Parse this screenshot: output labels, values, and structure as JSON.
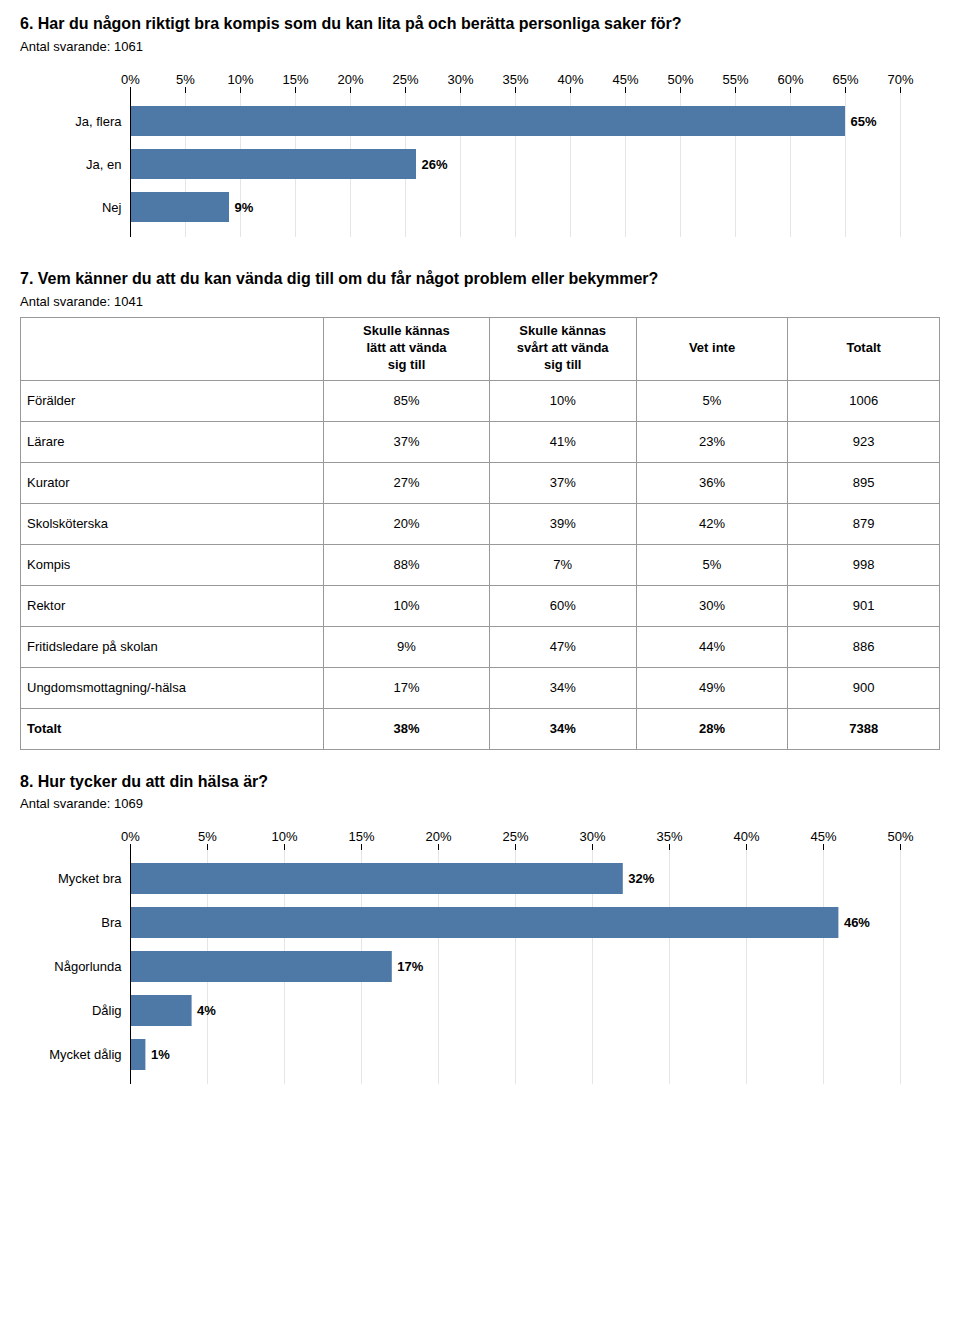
{
  "chart_data": [
    {
      "type": "bar",
      "title": "6. Har du någon riktigt bra kompis som du kan lita på och berätta personliga saker för?",
      "subtitle": "Antal svarande: 1061",
      "orientation": "horizontal",
      "categories": [
        "Ja, flera",
        "Ja, en",
        "Nej"
      ],
      "values": [
        65,
        26,
        9
      ],
      "value_labels": [
        "65%",
        "26%",
        "9%"
      ],
      "data_labels": true,
      "xlim": [
        0,
        70
      ],
      "xticks": [
        {
          "value": 0,
          "label": "0%"
        },
        {
          "value": 5,
          "label": "5%"
        },
        {
          "value": 10,
          "label": "10%"
        },
        {
          "value": 15,
          "label": "15%"
        },
        {
          "value": 20,
          "label": "20%"
        },
        {
          "value": 25,
          "label": "25%"
        },
        {
          "value": 30,
          "label": "30%"
        },
        {
          "value": 35,
          "label": "35%"
        },
        {
          "value": 40,
          "label": "40%"
        },
        {
          "value": 45,
          "label": "45%"
        },
        {
          "value": 50,
          "label": "50%"
        },
        {
          "value": 55,
          "label": "55%"
        },
        {
          "value": 60,
          "label": "60%"
        },
        {
          "value": 65,
          "label": "65%"
        },
        {
          "value": 70,
          "label": "70%"
        }
      ],
      "grid": true
    },
    {
      "type": "table",
      "title": "7. Vem känner du att du kan vända dig till om du får något problem eller bekymmer?",
      "subtitle": "Antal svarande: 1041",
      "categories": [
        "Förälder",
        "Lärare",
        "Kurator",
        "Skolsköterska",
        "Kompis",
        "Rektor",
        "Fritidsledare på skolan",
        "Ungdomsmottagning/-hälsa",
        "Totalt"
      ],
      "series": [
        {
          "name": "Skulle kännas\nlätt att vända\nsig till",
          "values": [
            85,
            37,
            27,
            20,
            88,
            10,
            9,
            17,
            38
          ],
          "value_labels": [
            "85%",
            "37%",
            "27%",
            "20%",
            "88%",
            "10%",
            "9%",
            "17%",
            "38%"
          ]
        },
        {
          "name": "Skulle kännas\nsvårt att vända\nsig till",
          "values": [
            10,
            41,
            37,
            39,
            7,
            60,
            47,
            34,
            34
          ],
          "value_labels": [
            "10%",
            "41%",
            "37%",
            "39%",
            "7%",
            "60%",
            "47%",
            "34%",
            "34%"
          ]
        },
        {
          "name": "Vet inte",
          "values": [
            5,
            23,
            36,
            42,
            5,
            30,
            44,
            49,
            28
          ],
          "value_labels": [
            "5%",
            "23%",
            "36%",
            "42%",
            "5%",
            "30%",
            "44%",
            "49%",
            "28%"
          ]
        },
        {
          "name": "Totalt",
          "values": [
            1006,
            923,
            895,
            879,
            998,
            901,
            886,
            900,
            7388
          ]
        }
      ]
    },
    {
      "type": "bar",
      "title": "8. Hur tycker du att din hälsa är?",
      "subtitle": "Antal svarande: 1069",
      "orientation": "horizontal",
      "categories": [
        "Mycket bra",
        "Bra",
        "Någorlunda",
        "Dålig",
        "Mycket dålig"
      ],
      "values": [
        32,
        46,
        17,
        4,
        1
      ],
      "value_labels": [
        "32%",
        "46%",
        "17%",
        "4%",
        "1%"
      ],
      "data_labels": true,
      "xlim": [
        0,
        50
      ],
      "xticks": [
        {
          "value": 0,
          "label": "0%"
        },
        {
          "value": 5,
          "label": "5%"
        },
        {
          "value": 10,
          "label": "10%"
        },
        {
          "value": 15,
          "label": "15%"
        },
        {
          "value": 20,
          "label": "20%"
        },
        {
          "value": 25,
          "label": "25%"
        },
        {
          "value": 30,
          "label": "30%"
        },
        {
          "value": 35,
          "label": "35%"
        },
        {
          "value": 40,
          "label": "40%"
        },
        {
          "value": 45,
          "label": "45%"
        },
        {
          "value": 50,
          "label": "50%"
        }
      ],
      "grid": true
    }
  ]
}
